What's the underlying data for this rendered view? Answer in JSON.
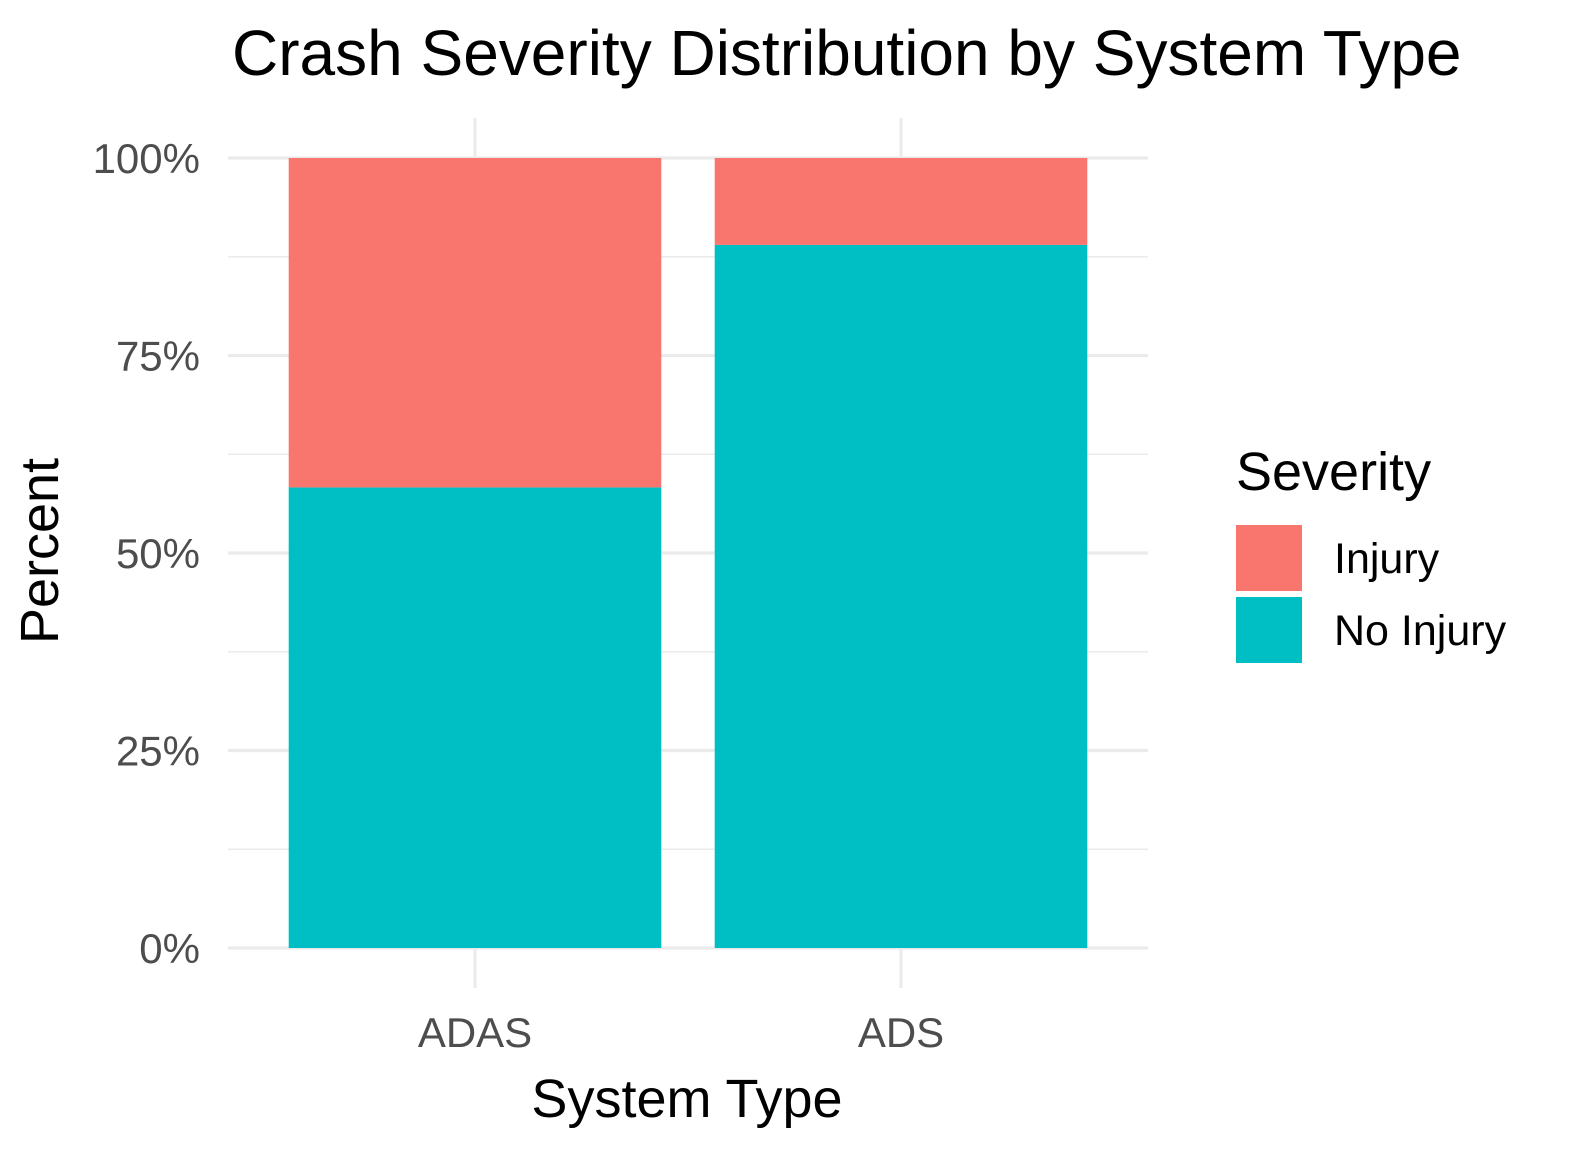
{
  "chart_data": {
    "type": "bar",
    "stacked": true,
    "title": "Crash Severity Distribution by System Type",
    "xlabel": "System Type",
    "ylabel": "Percent",
    "categories": [
      "ADAS",
      "ADS"
    ],
    "series": [
      {
        "name": "No Injury",
        "color": "#00BFC4",
        "values": [
          58.3,
          89.0
        ]
      },
      {
        "name": "Injury",
        "color": "#F8766D",
        "values": [
          41.7,
          11.0
        ]
      }
    ],
    "ylim": [
      0,
      100
    ],
    "yticks": [
      0,
      25,
      50,
      75,
      100
    ],
    "ytick_labels": [
      "0%",
      "25%",
      "50%",
      "75%",
      "100%"
    ],
    "grid": true,
    "legend": {
      "title": "Severity",
      "position": "right",
      "entries": [
        {
          "label": "Injury",
          "color": "#F8766D"
        },
        {
          "label": "No Injury",
          "color": "#00BFC4"
        }
      ]
    }
  }
}
